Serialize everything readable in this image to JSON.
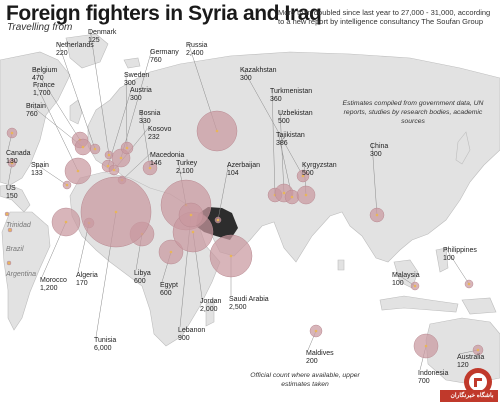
{
  "title": "Foreign fighters in Syria and Iraq",
  "subtitle": "Travelling from",
  "header_note": "More than doubled since last year to 27,000 - 31,000,  according to a new report by intelligence consultancy The Soufan Group",
  "sources_note": "Estimates compiled from government data, UN reports, studies by research bodies, academic sources",
  "footnote": "Official count where available, upper estimates taken",
  "logo_text": "باشگاه خبرنگاران",
  "colors": {
    "bubble": "#c999a0",
    "land": "#e2e2e2",
    "coast": "#bdbdbd",
    "target": "#2d2d2d",
    "dot": "#e8b55a"
  },
  "countries": [
    {
      "name": "Netherlands",
      "value": "220"
    },
    {
      "name": "Denmark",
      "value": "125"
    },
    {
      "name": "Russia",
      "value": "2,400"
    },
    {
      "name": "Germany",
      "value": "760"
    },
    {
      "name": "Belgium",
      "value": "470"
    },
    {
      "name": "France",
      "value": "1,700"
    },
    {
      "name": "Sweden",
      "value": "300"
    },
    {
      "name": "Austria",
      "value": "300"
    },
    {
      "name": "Kazakhstan",
      "value": "300"
    },
    {
      "name": "Britain",
      "value": "760"
    },
    {
      "name": "Bosnia",
      "value": "330"
    },
    {
      "name": "Kosovo",
      "value": "232"
    },
    {
      "name": "Macedonia",
      "value": "146"
    },
    {
      "name": "Turkmenistan",
      "value": "360"
    },
    {
      "name": "Uzbekistan",
      "value": "500"
    },
    {
      "name": "Tajikistan",
      "value": "386"
    },
    {
      "name": "Canada",
      "value": "130"
    },
    {
      "name": "Spain",
      "value": "133"
    },
    {
      "name": "US",
      "value": "150"
    },
    {
      "name": "Turkey",
      "value": "2,100"
    },
    {
      "name": "Azerbaijan",
      "value": "104"
    },
    {
      "name": "Kyrgyzstan",
      "value": "500"
    },
    {
      "name": "China",
      "value": "300"
    },
    {
      "name": "Trinidad",
      "value": ""
    },
    {
      "name": "Brazil",
      "value": ""
    },
    {
      "name": "Argentina",
      "value": ""
    },
    {
      "name": "Morocco",
      "value": "1,200"
    },
    {
      "name": "Algeria",
      "value": "170"
    },
    {
      "name": "Libya",
      "value": "600"
    },
    {
      "name": "Egypt",
      "value": "600"
    },
    {
      "name": "Philippines",
      "value": "100"
    },
    {
      "name": "Malaysia",
      "value": "100"
    },
    {
      "name": "Jordan",
      "value": "2,000"
    },
    {
      "name": "Lebanon",
      "value": "900"
    },
    {
      "name": "Saudi Arabia",
      "value": "2,500"
    },
    {
      "name": "Tunisia",
      "value": "6,000"
    },
    {
      "name": "Maldives",
      "value": "200"
    },
    {
      "name": "Australia",
      "value": "120"
    },
    {
      "name": "Indonesia",
      "value": "700"
    }
  ]
}
